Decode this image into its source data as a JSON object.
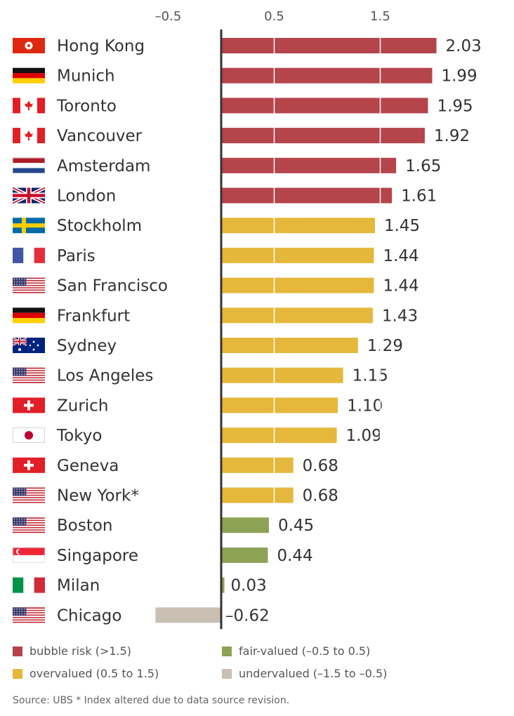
{
  "chart_data": {
    "type": "bar",
    "orientation": "horizontal",
    "title": "",
    "xlabel": "",
    "ylabel": "",
    "xlim": [
      -1.1,
      2.2
    ],
    "ticks": [
      {
        "value": -0.5,
        "label": "–0.5"
      },
      {
        "value": 0.5,
        "label": "0.5"
      },
      {
        "value": 1.5,
        "label": "1.5"
      }
    ],
    "grid": false,
    "legend_position": "bottom",
    "categories": [
      {
        "name": "Hong Kong",
        "value": 2.03,
        "label": "2.03",
        "class": "bubble",
        "flag": "hong-kong-flag"
      },
      {
        "name": "Munich",
        "value": 1.99,
        "label": "1.99",
        "class": "bubble",
        "flag": "germany-flag"
      },
      {
        "name": "Toronto",
        "value": 1.95,
        "label": "1.95",
        "class": "bubble",
        "flag": "canada-flag"
      },
      {
        "name": "Vancouver",
        "value": 1.92,
        "label": "1.92",
        "class": "bubble",
        "flag": "canada-flag"
      },
      {
        "name": "Amsterdam",
        "value": 1.65,
        "label": "1.65",
        "class": "bubble",
        "flag": "netherlands-flag"
      },
      {
        "name": "London",
        "value": 1.61,
        "label": "1.61",
        "class": "bubble",
        "flag": "uk-flag"
      },
      {
        "name": "Stockholm",
        "value": 1.45,
        "label": "1.45",
        "class": "overvalued",
        "flag": "sweden-flag"
      },
      {
        "name": "Paris",
        "value": 1.44,
        "label": "1.44",
        "class": "overvalued",
        "flag": "france-flag"
      },
      {
        "name": "San Francisco",
        "value": 1.44,
        "label": "1.44",
        "class": "overvalued",
        "flag": "usa-flag"
      },
      {
        "name": "Frankfurt",
        "value": 1.43,
        "label": "1.43",
        "class": "overvalued",
        "flag": "germany-flag"
      },
      {
        "name": "Sydney",
        "value": 1.29,
        "label": "1.29",
        "class": "overvalued",
        "flag": "australia-flag"
      },
      {
        "name": "Los Angeles",
        "value": 1.15,
        "label": "1.15",
        "class": "overvalued",
        "flag": "usa-flag"
      },
      {
        "name": "Zurich",
        "value": 1.1,
        "label": "1.10",
        "class": "overvalued",
        "flag": "switzerland-flag"
      },
      {
        "name": "Tokyo",
        "value": 1.09,
        "label": "1.09",
        "class": "overvalued",
        "flag": "japan-flag"
      },
      {
        "name": "Geneva",
        "value": 0.68,
        "label": "0.68",
        "class": "overvalued",
        "flag": "switzerland-flag"
      },
      {
        "name": "New York*",
        "value": 0.68,
        "label": "0.68",
        "class": "overvalued",
        "flag": "usa-flag"
      },
      {
        "name": "Boston",
        "value": 0.45,
        "label": "0.45",
        "class": "fair",
        "flag": "usa-flag"
      },
      {
        "name": "Singapore",
        "value": 0.44,
        "label": "0.44",
        "class": "fair",
        "flag": "singapore-flag"
      },
      {
        "name": "Milan",
        "value": 0.03,
        "label": "0.03",
        "class": "fair",
        "flag": "italy-flag"
      },
      {
        "name": "Chicago",
        "value": -0.62,
        "label": "–0.62",
        "class": "undervalued",
        "flag": "usa-flag"
      }
    ],
    "colors": {
      "bubble": "#b5444b",
      "overvalued": "#e5b83c",
      "fair": "#8ca355",
      "undervalued": "#c9c0b3",
      "axis": "#333333"
    },
    "legend": [
      {
        "key": "bubble",
        "label": "bubble risk (>1.5)"
      },
      {
        "key": "fair",
        "label": "fair-valued (–0.5 to 0.5)"
      },
      {
        "key": "overvalued",
        "label": "overvalued (0.5 to 1.5)"
      },
      {
        "key": "undervalued",
        "label": "undervalued (–1.5 to –0.5)"
      }
    ]
  },
  "source_note": "Source: UBS  * Index altered due to data source revision."
}
